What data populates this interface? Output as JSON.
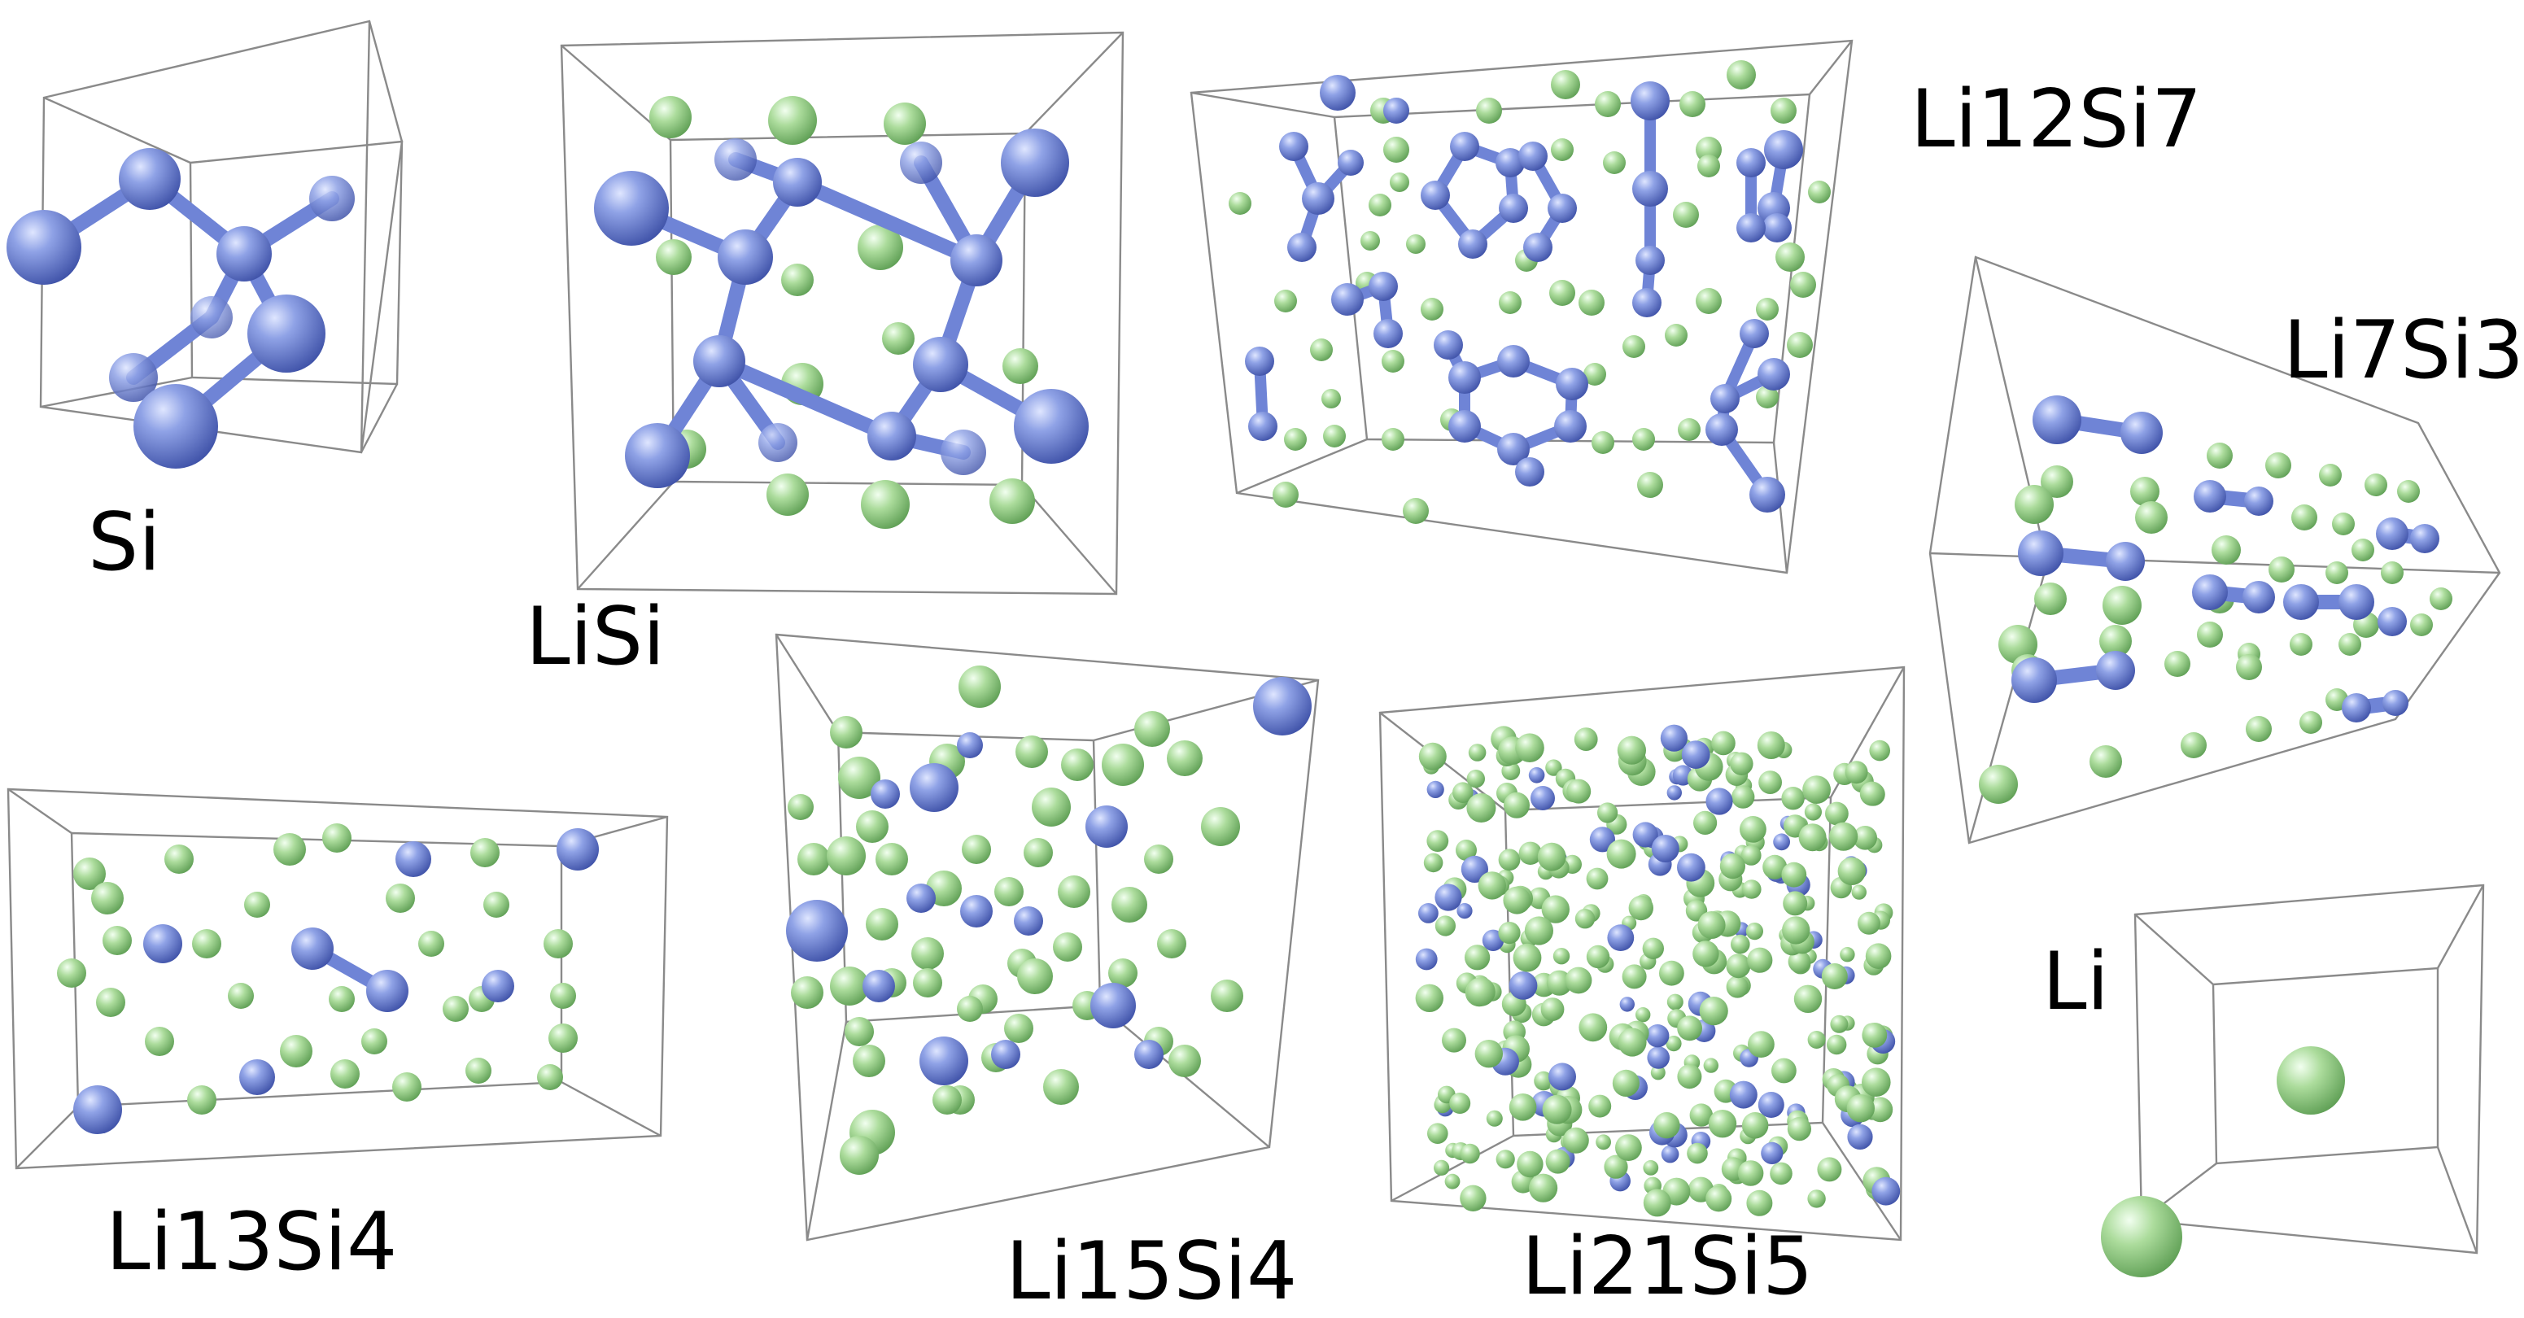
{
  "colors": {
    "silicon": "#6f84d6",
    "lithium": "#a9dc98",
    "cell_edge": "#8a8a8a",
    "bond": "#6f84d6"
  },
  "structures": [
    {
      "id": "si",
      "label": "Si"
    },
    {
      "id": "lisi",
      "label": "LiSi"
    },
    {
      "id": "li12si7",
      "label": "Li12Si7"
    },
    {
      "id": "li7si3",
      "label": "Li7Si3"
    },
    {
      "id": "li13si4",
      "label": "Li13Si4"
    },
    {
      "id": "li15si4",
      "label": "Li15Si4"
    },
    {
      "id": "li21si5",
      "label": "Li21Si5"
    },
    {
      "id": "li",
      "label": "Li"
    }
  ]
}
